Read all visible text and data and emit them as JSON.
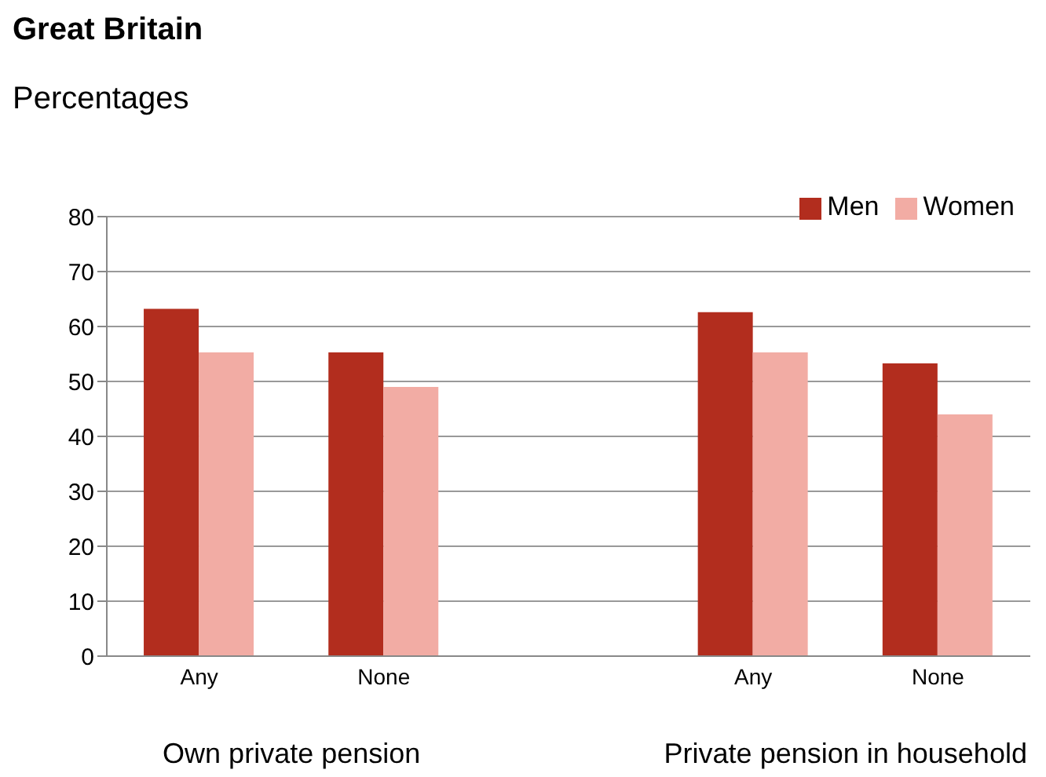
{
  "chart_data": {
    "type": "bar",
    "title": "Great Britain",
    "subtitle": "Percentages",
    "categories": [
      "Any",
      "None",
      null,
      "Any",
      "None"
    ],
    "series": [
      {
        "name": "Men",
        "color": "#b22d1e",
        "values": [
          63.2,
          55.3,
          null,
          62.6,
          53.3
        ]
      },
      {
        "name": "Women",
        "color": "#f2aca4",
        "values": [
          55.3,
          49,
          null,
          55.3,
          44
        ]
      }
    ],
    "ylim": [
      0,
      80
    ],
    "yticks": [
      0,
      10,
      20,
      30,
      40,
      50,
      60,
      70,
      80
    ],
    "grid": "y",
    "legend": "top right",
    "annotations": [
      "Own private pension",
      "Private pension in household"
    ]
  }
}
